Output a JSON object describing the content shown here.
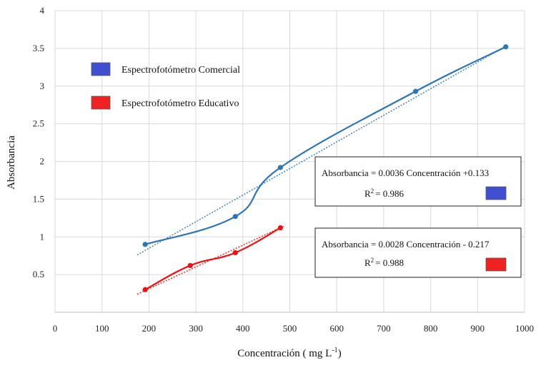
{
  "chart_data": {
    "type": "scatter",
    "xlabel": "Concentración ( mg L",
    "xlabel_sup": "-1",
    "xlabel_end": ")",
    "ylabel": "Absorbancia",
    "xlim": [
      0,
      1000
    ],
    "ylim": [
      0,
      4
    ],
    "x_ticks": [
      "0",
      "100",
      "200",
      "300",
      "400",
      "500",
      "600",
      "700",
      "800",
      "900",
      "1000"
    ],
    "y_ticks": [
      "0.5",
      "1",
      "1.5",
      "2",
      "2.5",
      "3",
      "3.5",
      "4"
    ],
    "grid": true,
    "legend_position": "top-left",
    "series": [
      {
        "name": "Espectrofotómetro Comercial",
        "color": "#2e75b6",
        "legend_color": "#3f4fcf",
        "x": [
          192,
          384,
          480,
          768,
          960
        ],
        "y": [
          0.9,
          1.27,
          1.92,
          2.93,
          3.52
        ],
        "trendline": {
          "x": [
            175,
            960
          ],
          "y": [
            0.76,
            3.53
          ]
        },
        "equation": "Absorbancia = 0.0036 Concentración +0.133",
        "r2_label": "R",
        "r2_sup": "2",
        "r2_value": "= 0.986"
      },
      {
        "name": "Espectrofotómetro Educativo",
        "color": "#ee1111",
        "legend_color": "#ee2222",
        "x": [
          192,
          288,
          384,
          480
        ],
        "y": [
          0.3,
          0.62,
          0.79,
          1.12
        ],
        "trendline": {
          "x": [
            175,
            490
          ],
          "y": [
            0.24,
            1.15
          ]
        },
        "equation": "Absorbancia = 0.0028 Concentración - 0.217",
        "r2_label": "R",
        "r2_sup": "2",
        "r2_value": "= 0.988"
      }
    ]
  }
}
